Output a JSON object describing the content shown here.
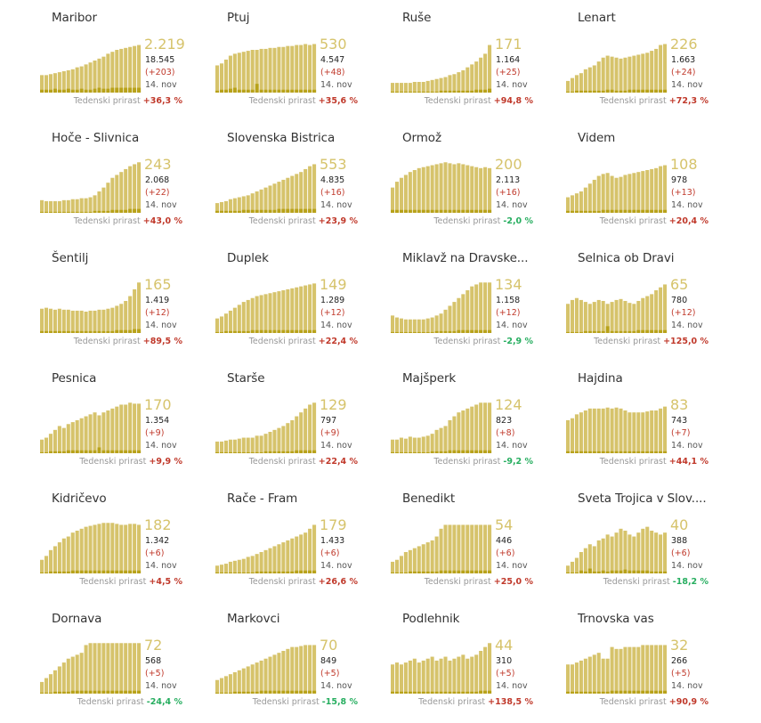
{
  "labels": {
    "growth_label": "Tedenski prirast",
    "date": "14. nov"
  },
  "colors": {
    "bar": "#d6c36b",
    "bar_dark": "#b8a21a",
    "up": "#c0392b",
    "down": "#27ae60"
  },
  "chart_data": [
    {
      "type": "bar",
      "title": "Maribor",
      "value": "2.219",
      "total": "18.545",
      "new": "(+203)",
      "growth": "+36,3 %",
      "trend": "up",
      "values": [
        18,
        18,
        19,
        20,
        21,
        22,
        23,
        24,
        26,
        27,
        29,
        31,
        33,
        35,
        37,
        40,
        42,
        44,
        45,
        46,
        47,
        48,
        49
      ],
      "daily": [
        3,
        3,
        3,
        4,
        3,
        3,
        4,
        3,
        3,
        4,
        3,
        3,
        4,
        5,
        4,
        4,
        5,
        5,
        5,
        5,
        5,
        5,
        5
      ]
    },
    {
      "type": "bar",
      "title": "Ptuj",
      "value": "530",
      "total": "4.547",
      "new": "(+48)",
      "growth": "+35,6 %",
      "trend": "up",
      "values": [
        28,
        30,
        34,
        38,
        40,
        41,
        42,
        43,
        44,
        44,
        45,
        45,
        46,
        46,
        47,
        47,
        48,
        48,
        49,
        49,
        50,
        49,
        50
      ],
      "daily": [
        2,
        3,
        3,
        4,
        5,
        3,
        3,
        3,
        3,
        9,
        3,
        3,
        3,
        3,
        3,
        3,
        3,
        3,
        3,
        3,
        3,
        3,
        3
      ]
    },
    {
      "type": "bar",
      "title": "Ruše",
      "value": "171",
      "total": "1.164",
      "new": "(+25)",
      "growth": "+94,8 %",
      "trend": "up",
      "values": [
        10,
        10,
        10,
        10,
        10,
        11,
        11,
        11,
        12,
        13,
        14,
        15,
        16,
        18,
        19,
        21,
        23,
        26,
        29,
        32,
        36,
        40,
        49
      ],
      "daily": [
        1,
        1,
        1,
        1,
        1,
        1,
        1,
        1,
        1,
        1,
        1,
        2,
        2,
        2,
        2,
        2,
        2,
        2,
        2,
        3,
        3,
        3,
        4
      ]
    },
    {
      "type": "bar",
      "title": "Lenart",
      "value": "226",
      "total": "1.663",
      "new": "(+24)",
      "growth": "+72,3 %",
      "trend": "up",
      "values": [
        12,
        15,
        18,
        20,
        24,
        26,
        28,
        32,
        36,
        38,
        37,
        36,
        35,
        36,
        37,
        38,
        39,
        40,
        41,
        43,
        45,
        49,
        50
      ],
      "daily": [
        1,
        1,
        2,
        2,
        2,
        2,
        2,
        2,
        2,
        3,
        3,
        2,
        2,
        2,
        3,
        3,
        3,
        3,
        3,
        3,
        3,
        3,
        3
      ]
    },
    {
      "type": "bar",
      "title": "Hoče - Slivnica",
      "value": "243",
      "total": "2.068",
      "new": "(+22)",
      "growth": "+43,0 %",
      "trend": "up",
      "values": [
        13,
        12,
        12,
        12,
        12,
        13,
        13,
        14,
        14,
        15,
        15,
        16,
        18,
        22,
        26,
        31,
        36,
        39,
        42,
        45,
        48,
        50,
        52
      ],
      "daily": [
        1,
        1,
        1,
        1,
        1,
        1,
        1,
        1,
        1,
        1,
        1,
        1,
        2,
        2,
        2,
        2,
        3,
        3,
        3,
        3,
        4,
        4,
        4
      ]
    },
    {
      "type": "bar",
      "title": "Slovenska Bistrica",
      "value": "553",
      "total": "4.835",
      "new": "(+16)",
      "growth": "+23,9 %",
      "trend": "up",
      "values": [
        10,
        11,
        12,
        14,
        15,
        16,
        17,
        18,
        20,
        22,
        24,
        26,
        28,
        30,
        32,
        34,
        36,
        38,
        40,
        42,
        45,
        48,
        50
      ],
      "daily": [
        2,
        2,
        2,
        2,
        2,
        2,
        3,
        3,
        3,
        3,
        3,
        3,
        3,
        3,
        4,
        4,
        4,
        4,
        4,
        4,
        4,
        4,
        4
      ]
    },
    {
      "type": "bar",
      "title": "Ormož",
      "value": "200",
      "total": "2.113",
      "new": "(+16)",
      "growth": "-2,0 %",
      "trend": "down",
      "values": [
        26,
        32,
        36,
        39,
        42,
        44,
        46,
        47,
        48,
        49,
        50,
        51,
        52,
        51,
        50,
        51,
        50,
        49,
        48,
        47,
        46,
        47,
        46
      ],
      "daily": [
        3,
        3,
        3,
        3,
        3,
        3,
        3,
        3,
        3,
        3,
        3,
        3,
        3,
        3,
        3,
        3,
        3,
        3,
        3,
        3,
        3,
        3,
        3
      ]
    },
    {
      "type": "bar",
      "title": "Videm",
      "value": "108",
      "total": "978",
      "new": "(+13)",
      "growth": "+20,4 %",
      "trend": "up",
      "values": [
        16,
        18,
        20,
        22,
        26,
        30,
        34,
        38,
        40,
        41,
        38,
        36,
        37,
        39,
        40,
        41,
        42,
        43,
        44,
        45,
        46,
        48,
        49
      ],
      "daily": [
        2,
        2,
        2,
        2,
        2,
        2,
        2,
        2,
        3,
        3,
        3,
        3,
        3,
        3,
        3,
        3,
        3,
        3,
        3,
        3,
        3,
        3,
        3
      ]
    },
    {
      "type": "bar",
      "title": "Šentilj",
      "value": "165",
      "total": "1.419",
      "new": "(+12)",
      "growth": "+89,5 %",
      "trend": "up",
      "values": [
        25,
        26,
        25,
        24,
        25,
        24,
        24,
        23,
        23,
        23,
        22,
        23,
        23,
        24,
        24,
        25,
        26,
        28,
        30,
        33,
        38,
        45,
        52
      ],
      "daily": [
        2,
        2,
        2,
        2,
        2,
        2,
        2,
        2,
        2,
        2,
        2,
        2,
        2,
        2,
        2,
        2,
        2,
        3,
        3,
        3,
        3,
        4,
        4
      ]
    },
    {
      "type": "bar",
      "title": "Duplek",
      "value": "149",
      "total": "1.289",
      "new": "(+12)",
      "growth": "+22,4 %",
      "trend": "up",
      "values": [
        15,
        17,
        20,
        23,
        26,
        29,
        32,
        34,
        36,
        38,
        39,
        40,
        41,
        42,
        43,
        44,
        45,
        46,
        47,
        48,
        49,
        50,
        51
      ],
      "daily": [
        1,
        1,
        2,
        2,
        2,
        2,
        2,
        2,
        3,
        3,
        3,
        3,
        3,
        3,
        3,
        3,
        3,
        3,
        3,
        3,
        3,
        3,
        3
      ]
    },
    {
      "type": "bar",
      "title": "Miklavž na Dravske...",
      "value": "134",
      "total": "1.158",
      "new": "(+12)",
      "growth": "-2,9 %",
      "trend": "down",
      "values": [
        18,
        16,
        15,
        14,
        14,
        14,
        14,
        14,
        15,
        16,
        18,
        20,
        24,
        28,
        32,
        36,
        40,
        44,
        48,
        50,
        52,
        52,
        52
      ],
      "daily": [
        1,
        1,
        1,
        1,
        1,
        1,
        1,
        1,
        1,
        1,
        2,
        2,
        2,
        2,
        2,
        3,
        3,
        3,
        3,
        3,
        3,
        3,
        3
      ]
    },
    {
      "type": "bar",
      "title": "Selnica ob Dravi",
      "value": "65",
      "total": "780",
      "new": "(+12)",
      "growth": "+125,0 %",
      "trend": "up",
      "values": [
        30,
        34,
        36,
        34,
        32,
        30,
        32,
        34,
        33,
        30,
        32,
        34,
        35,
        33,
        31,
        30,
        33,
        36,
        38,
        40,
        44,
        47,
        50
      ],
      "daily": [
        1,
        1,
        1,
        1,
        2,
        2,
        2,
        2,
        2,
        7,
        2,
        2,
        2,
        2,
        2,
        2,
        3,
        3,
        3,
        3,
        3,
        3,
        3
      ]
    },
    {
      "type": "bar",
      "title": "Pesnica",
      "value": "170",
      "total": "1.354",
      "new": "(+9)",
      "growth": "+9,9 %",
      "trend": "up",
      "values": [
        14,
        16,
        20,
        24,
        28,
        26,
        30,
        32,
        34,
        36,
        38,
        40,
        42,
        39,
        42,
        44,
        46,
        48,
        50,
        50,
        52,
        51,
        51
      ],
      "daily": [
        1,
        1,
        2,
        2,
        2,
        2,
        3,
        3,
        3,
        3,
        3,
        3,
        3,
        6,
        3,
        3,
        3,
        3,
        3,
        3,
        3,
        3,
        3
      ]
    },
    {
      "type": "bar",
      "title": "Starše",
      "value": "129",
      "total": "797",
      "new": "(+9)",
      "growth": "+22,4 %",
      "trend": "up",
      "values": [
        12,
        12,
        13,
        14,
        14,
        15,
        16,
        16,
        16,
        18,
        18,
        20,
        22,
        24,
        26,
        28,
        31,
        34,
        38,
        42,
        46,
        50,
        52
      ],
      "daily": [
        1,
        1,
        1,
        1,
        1,
        1,
        1,
        1,
        1,
        1,
        1,
        2,
        2,
        2,
        2,
        2,
        2,
        2,
        3,
        3,
        3,
        3,
        3
      ]
    },
    {
      "type": "bar",
      "title": "Majšperk",
      "value": "124",
      "total": "823",
      "new": "(+8)",
      "growth": "-9,2 %",
      "trend": "down",
      "values": [
        14,
        14,
        16,
        15,
        17,
        16,
        16,
        17,
        18,
        20,
        24,
        26,
        28,
        34,
        38,
        42,
        44,
        46,
        48,
        50,
        52,
        52,
        52
      ],
      "daily": [
        1,
        1,
        1,
        1,
        1,
        1,
        1,
        1,
        1,
        2,
        2,
        2,
        2,
        3,
        3,
        3,
        3,
        3,
        3,
        3,
        3,
        3,
        3
      ]
    },
    {
      "type": "bar",
      "title": "Hajdina",
      "value": "83",
      "total": "743",
      "new": "(+7)",
      "growth": "+44,1 %",
      "trend": "up",
      "values": [
        34,
        36,
        40,
        42,
        44,
        46,
        46,
        46,
        46,
        47,
        46,
        47,
        46,
        44,
        42,
        42,
        42,
        42,
        43,
        44,
        44,
        46,
        48
      ],
      "daily": [
        2,
        2,
        2,
        2,
        2,
        2,
        2,
        2,
        2,
        2,
        2,
        2,
        2,
        2,
        2,
        2,
        2,
        2,
        2,
        2,
        2,
        2,
        2
      ]
    },
    {
      "type": "bar",
      "title": "Kidričevo",
      "value": "182",
      "total": "1.342",
      "new": "(+6)",
      "growth": "+4,5 %",
      "trend": "up",
      "values": [
        14,
        18,
        24,
        28,
        32,
        36,
        38,
        42,
        44,
        46,
        48,
        49,
        50,
        51,
        52,
        52,
        52,
        51,
        50,
        50,
        51,
        51,
        50
      ],
      "daily": [
        1,
        1,
        2,
        2,
        2,
        2,
        2,
        3,
        3,
        3,
        3,
        3,
        3,
        3,
        3,
        3,
        3,
        3,
        3,
        3,
        3,
        3,
        3
      ]
    },
    {
      "type": "bar",
      "title": "Rače - Fram",
      "value": "179",
      "total": "1.433",
      "new": "(+6)",
      "growth": "+26,6 %",
      "trend": "up",
      "values": [
        8,
        9,
        10,
        12,
        13,
        14,
        15,
        17,
        18,
        20,
        22,
        24,
        26,
        28,
        30,
        32,
        34,
        36,
        38,
        40,
        42,
        46,
        50
      ],
      "daily": [
        1,
        1,
        1,
        1,
        1,
        1,
        1,
        1,
        1,
        2,
        2,
        2,
        2,
        2,
        2,
        2,
        2,
        2,
        3,
        3,
        3,
        3,
        3
      ]
    },
    {
      "type": "bar",
      "title": "Benedikt",
      "value": "54",
      "total": "446",
      "new": "(+6)",
      "growth": "+25,0 %",
      "trend": "up",
      "values": [
        12,
        14,
        18,
        22,
        24,
        26,
        28,
        30,
        32,
        34,
        38,
        46,
        50,
        50,
        50,
        50,
        50,
        50,
        50,
        50,
        50,
        50,
        50
      ],
      "daily": [
        1,
        1,
        1,
        1,
        2,
        2,
        2,
        2,
        2,
        2,
        2,
        3,
        3,
        3,
        3,
        3,
        3,
        3,
        3,
        3,
        3,
        3,
        3
      ]
    },
    {
      "type": "bar",
      "title": "Sveta Trojica v Slov....",
      "value": "40",
      "total": "388",
      "new": "(+6)",
      "growth": "-18,2 %",
      "trend": "down",
      "values": [
        8,
        12,
        16,
        22,
        26,
        30,
        28,
        34,
        36,
        40,
        38,
        42,
        46,
        44,
        40,
        38,
        42,
        46,
        48,
        44,
        42,
        40,
        42
      ],
      "daily": [
        1,
        1,
        1,
        3,
        2,
        5,
        2,
        2,
        3,
        2,
        3,
        3,
        3,
        4,
        3,
        3,
        3,
        3,
        3,
        2,
        2,
        2,
        2
      ]
    },
    {
      "type": "bar",
      "title": "Dornava",
      "value": "72",
      "total": "568",
      "new": "(+5)",
      "growth": "-24,4 %",
      "trend": "down",
      "values": [
        12,
        16,
        20,
        24,
        28,
        32,
        36,
        38,
        40,
        42,
        50,
        52,
        52,
        52,
        52,
        52,
        52,
        52,
        52,
        52,
        52,
        52,
        52
      ],
      "daily": [
        1,
        1,
        1,
        2,
        2,
        2,
        2,
        3,
        3,
        3,
        3,
        3,
        3,
        3,
        3,
        3,
        3,
        3,
        3,
        3,
        3,
        3,
        3
      ]
    },
    {
      "type": "bar",
      "title": "Markovci",
      "value": "70",
      "total": "849",
      "new": "(+5)",
      "growth": "-15,8 %",
      "trend": "down",
      "values": [
        14,
        16,
        18,
        20,
        22,
        24,
        26,
        28,
        30,
        32,
        34,
        36,
        38,
        40,
        42,
        44,
        46,
        48,
        48,
        49,
        50,
        50,
        50
      ],
      "daily": [
        1,
        1,
        1,
        1,
        2,
        2,
        2,
        2,
        2,
        2,
        3,
        3,
        3,
        3,
        3,
        3,
        3,
        3,
        3,
        3,
        3,
        3,
        3
      ]
    },
    {
      "type": "bar",
      "title": "Podlehnik",
      "value": "44",
      "total": "310",
      "new": "(+5)",
      "growth": "+138,5 %",
      "trend": "up",
      "values": [
        30,
        32,
        30,
        32,
        34,
        36,
        32,
        34,
        36,
        38,
        34,
        36,
        38,
        34,
        36,
        38,
        40,
        36,
        38,
        40,
        44,
        48,
        52
      ],
      "daily": [
        2,
        2,
        2,
        2,
        2,
        2,
        2,
        2,
        2,
        2,
        2,
        2,
        2,
        2,
        2,
        2,
        2,
        2,
        2,
        2,
        3,
        3,
        3
      ]
    },
    {
      "type": "bar",
      "title": "Trnovska vas",
      "value": "32",
      "total": "266",
      "new": "(+5)",
      "growth": "+90,9 %",
      "trend": "up",
      "values": [
        30,
        30,
        32,
        34,
        36,
        38,
        40,
        42,
        36,
        36,
        48,
        46,
        46,
        48,
        48,
        48,
        48,
        50,
        50,
        50,
        50,
        50,
        50
      ],
      "daily": [
        2,
        2,
        2,
        2,
        2,
        2,
        2,
        2,
        2,
        2,
        3,
        3,
        3,
        3,
        3,
        3,
        3,
        3,
        3,
        3,
        3,
        3,
        3
      ]
    }
  ]
}
